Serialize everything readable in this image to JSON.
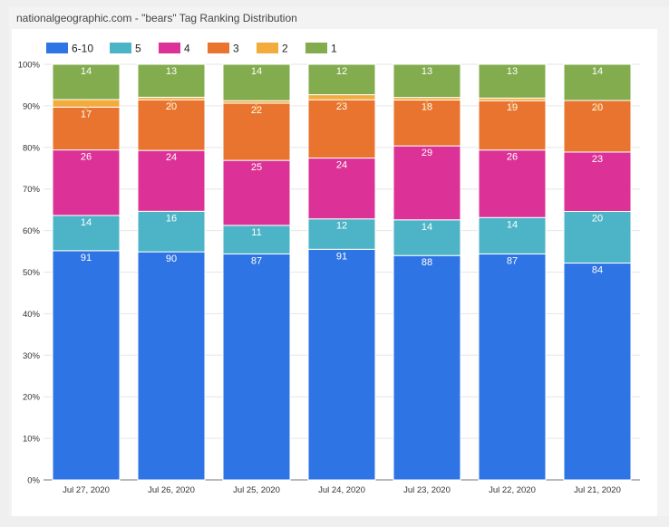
{
  "panel": {
    "title": "nationalgeographic.com - \"bears\" Tag Ranking Distribution"
  },
  "chart_data": {
    "type": "bar",
    "stacked": true,
    "normalized": true,
    "title": "nationalgeographic.com - \"bears\" Tag Ranking Distribution",
    "xlabel": "",
    "ylabel": "",
    "ylim": [
      0,
      100
    ],
    "y_ticks": [
      "0%",
      "10%",
      "20%",
      "30%",
      "40%",
      "50%",
      "60%",
      "70%",
      "80%",
      "90%",
      "100%"
    ],
    "legend_position": "top-left",
    "grid": true,
    "categories": [
      "Jul 27, 2020",
      "Jul 26, 2020",
      "Jul 25, 2020",
      "Jul 24, 2020",
      "Jul 23, 2020",
      "Jul 22, 2020",
      "Jul 21, 2020"
    ],
    "series": [
      {
        "name": "6-10",
        "color": "#2e74e4",
        "label_color": "#ffffff",
        "values": [
          91,
          90,
          87,
          91,
          88,
          87,
          84
        ]
      },
      {
        "name": "5",
        "color": "#4db3c7",
        "label_color": "#ffffff",
        "values": [
          14,
          16,
          11,
          12,
          14,
          14,
          20
        ]
      },
      {
        "name": "4",
        "color": "#dc3196",
        "label_color": "#ffffff",
        "values": [
          26,
          24,
          25,
          24,
          29,
          26,
          23
        ]
      },
      {
        "name": "3",
        "color": "#e8742f",
        "label_color": "#ffffff",
        "values": [
          17,
          20,
          22,
          23,
          18,
          19,
          20
        ]
      },
      {
        "name": "2",
        "color": "#f3ab3c",
        "label_color": "#f3ab3c",
        "values": [
          3,
          1,
          1,
          2,
          1,
          1,
          0
        ]
      },
      {
        "name": "1",
        "color": "#82ac4d",
        "label_color": "#ffffff",
        "values": [
          14,
          13,
          14,
          12,
          13,
          13,
          14
        ]
      }
    ]
  }
}
